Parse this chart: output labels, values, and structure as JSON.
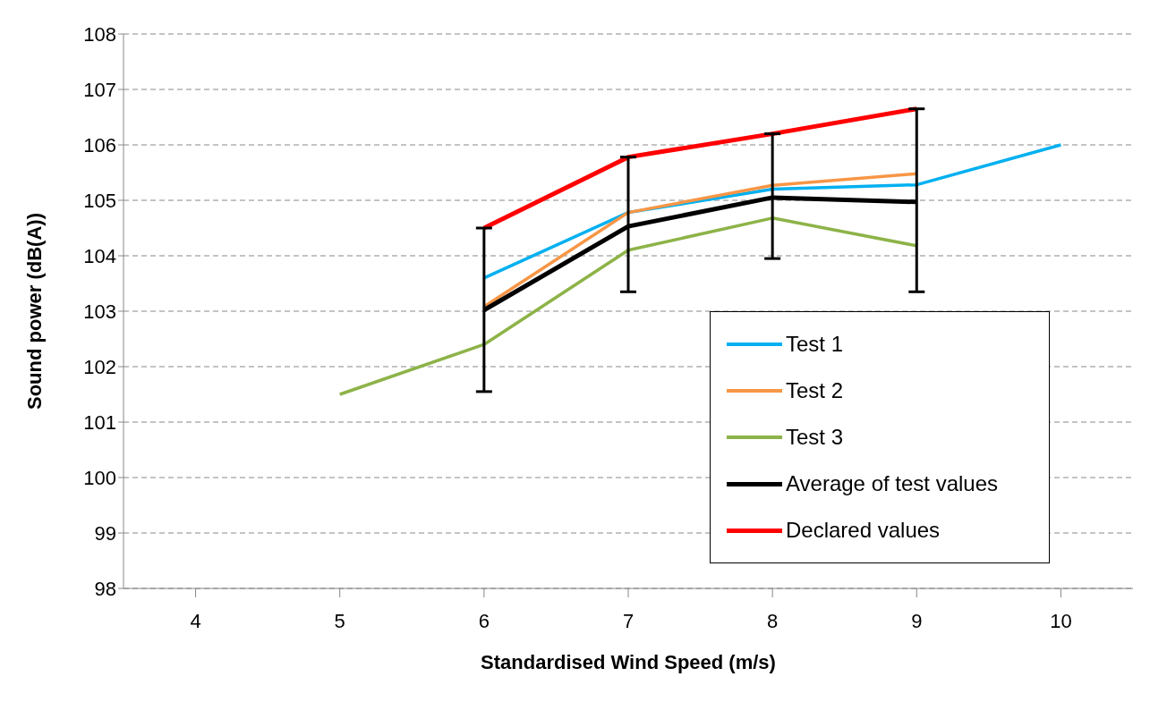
{
  "chart_data": {
    "type": "line",
    "xlabel": "Standardised Wind Speed (m/s)",
    "ylabel": "Sound power (dB(A))",
    "categories": [
      "4",
      "5",
      "6",
      "7",
      "8",
      "9",
      "10"
    ],
    "series": [
      {
        "name": "Test 1",
        "color": "#00b0f0",
        "values": [
          null,
          null,
          103.6,
          104.78,
          105.2,
          105.28,
          106.0
        ]
      },
      {
        "name": "Test 2",
        "color": "#f79646",
        "values": [
          null,
          null,
          103.08,
          104.78,
          105.27,
          105.48,
          null
        ]
      },
      {
        "name": "Test 3",
        "color": "#8db348",
        "values": [
          null,
          101.5,
          102.4,
          104.1,
          104.68,
          104.18,
          null
        ]
      },
      {
        "name": "Average of test values",
        "color": "#000000",
        "values": [
          null,
          null,
          103.02,
          104.53,
          105.05,
          104.97,
          null
        ]
      },
      {
        "name": "Declared values",
        "color": "#ff0000",
        "values": [
          null,
          null,
          104.5,
          105.78,
          106.2,
          106.65,
          null
        ],
        "errors": [
          null,
          null,
          [
            101.55,
            104.5
          ],
          [
            103.35,
            105.78
          ],
          [
            103.95,
            106.2
          ],
          [
            103.35,
            106.65
          ],
          null
        ]
      }
    ],
    "ylim": [
      98,
      108
    ],
    "yticks": [
      98,
      99,
      100,
      101,
      102,
      103,
      104,
      105,
      106,
      107,
      108
    ],
    "grid": "y",
    "legend": "bottom right",
    "marker": "none",
    "line_style": "solid"
  }
}
